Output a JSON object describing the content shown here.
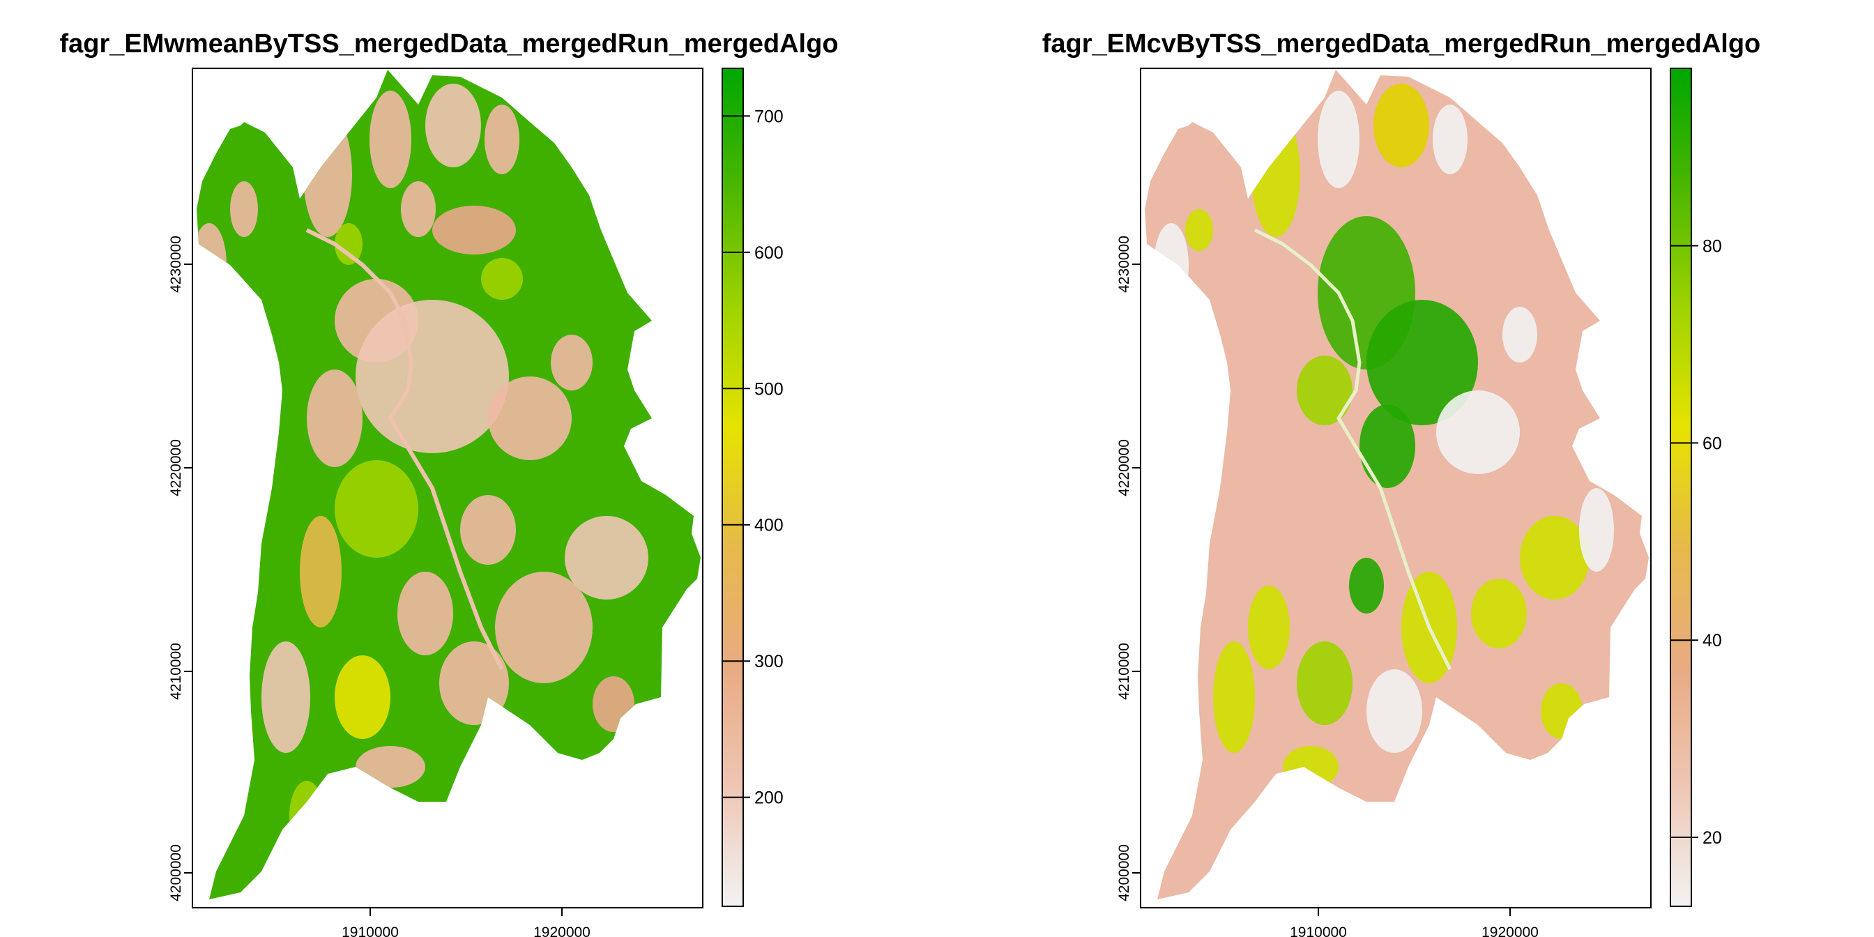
{
  "panels": [
    {
      "id": "wmean",
      "title": "fagr_EMwmeanByTSS_mergedData_mergedRun_mergedAlgo",
      "x_ticks": [
        "1910000",
        "1920000"
      ],
      "y_ticks": [
        "4200000",
        "4210000",
        "4220000",
        "4230000"
      ],
      "legend": {
        "min": 120,
        "max": 735,
        "ticks": [
          200,
          300,
          400,
          500,
          600,
          700
        ],
        "tick_labels": [
          "200",
          "300",
          "400",
          "500",
          "600",
          "700"
        ],
        "colors": [
          "#f2f2f2",
          "#eec6b4",
          "#e8ab82",
          "#e6b94a",
          "#e6e300",
          "#9fd300",
          "#4cb700",
          "#00a600"
        ]
      },
      "dominant_color": "#3fb000",
      "patch_color": "#eeb9a3"
    },
    {
      "id": "cv",
      "title": "fagr_EMcvByTSS_mergedData_mergedRun_mergedAlgo",
      "x_ticks": [
        "1910000",
        "1920000"
      ],
      "y_ticks": [
        "4200000",
        "4210000",
        "4220000",
        "4230000"
      ],
      "legend": {
        "min": 13,
        "max": 98,
        "ticks": [
          20,
          40,
          60,
          80
        ],
        "tick_labels": [
          "20",
          "40",
          "60",
          "80"
        ],
        "colors": [
          "#f2f2f2",
          "#eec6b4",
          "#e8ab82",
          "#e6b94a",
          "#e6e300",
          "#9fd300",
          "#4cb700",
          "#00a600"
        ]
      },
      "dominant_color": "#ebb9a5",
      "patch_color": "#cfe000"
    }
  ]
}
